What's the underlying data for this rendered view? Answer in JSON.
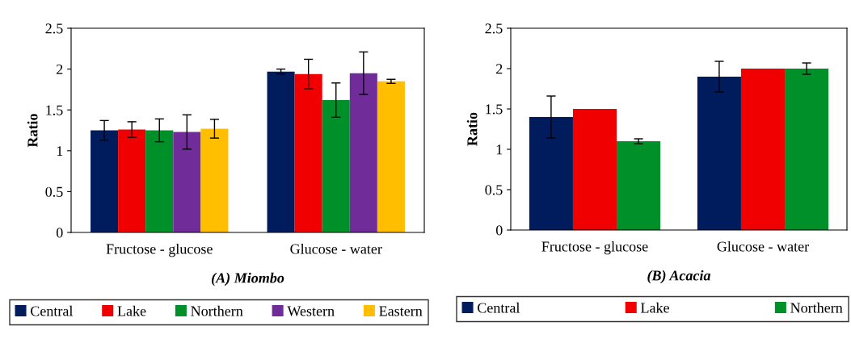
{
  "chart_data": [
    {
      "type": "bar",
      "title": "(A) Miombo",
      "ylabel": "Ratio",
      "categories": [
        "Fructose - glucose",
        "Glucose - water"
      ],
      "ylim": [
        0,
        2.5
      ],
      "yticks": [
        0,
        0.5,
        1,
        1.5,
        2,
        2.5
      ],
      "legend": "bottom",
      "grid": false,
      "series": [
        {
          "name": "Central",
          "color": "#001c5c",
          "values": [
            1.25,
            1.97
          ],
          "errors": [
            0.12,
            0.03
          ]
        },
        {
          "name": "Lake",
          "color": "#f00000",
          "values": [
            1.26,
            1.94
          ],
          "errors": [
            0.095,
            0.18
          ]
        },
        {
          "name": "Northern",
          "color": "#00902a",
          "values": [
            1.25,
            1.62
          ],
          "errors": [
            0.14,
            0.21
          ]
        },
        {
          "name": "Western",
          "color": "#702c98",
          "values": [
            1.23,
            1.95
          ],
          "errors": [
            0.21,
            0.26
          ]
        },
        {
          "name": "Eastern",
          "color": "#ffbf00",
          "values": [
            1.27,
            1.85
          ],
          "errors": [
            0.115,
            0.025
          ]
        }
      ]
    },
    {
      "type": "bar",
      "title": "(B) Acacia",
      "ylabel": "Ratio",
      "categories": [
        "Fructose - glucose",
        "Glucose - water"
      ],
      "ylim": [
        0,
        2.5
      ],
      "yticks": [
        0,
        0.5,
        1,
        1.5,
        2,
        2.5
      ],
      "legend": "bottom",
      "grid": false,
      "series": [
        {
          "name": "Central",
          "color": "#001c5c",
          "values": [
            1.4,
            1.9
          ],
          "errors": [
            0.26,
            0.19
          ]
        },
        {
          "name": "Lake",
          "color": "#f00000",
          "values": [
            1.5,
            2.0
          ],
          "errors": [
            null,
            null
          ]
        },
        {
          "name": "Northern",
          "color": "#00902a",
          "values": [
            1.1,
            2.0
          ],
          "errors": [
            0.03,
            0.07
          ]
        }
      ]
    }
  ]
}
